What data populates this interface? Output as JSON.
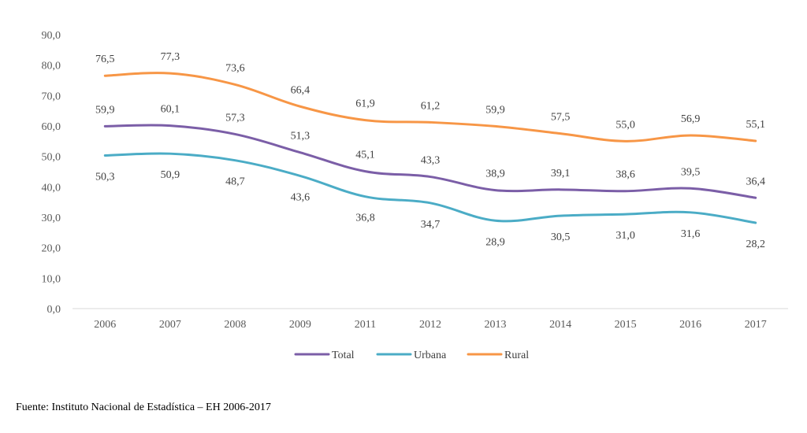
{
  "chart_data": {
    "type": "line",
    "categories": [
      "2006",
      "2007",
      "2008",
      "2009",
      "2011",
      "2012",
      "2013",
      "2014",
      "2015",
      "2016",
      "2017"
    ],
    "ylim": [
      0,
      90
    ],
    "yticks": [
      "0,0",
      "10,0",
      "20,0",
      "30,0",
      "40,0",
      "50,0",
      "60,0",
      "70,0",
      "80,0",
      "90,0"
    ],
    "grid": false,
    "legend_position": "bottom",
    "series": [
      {
        "name": "Total",
        "color": "#7b5ea7",
        "values": [
          59.9,
          60.1,
          57.3,
          51.3,
          45.1,
          43.3,
          38.9,
          39.1,
          38.6,
          39.5,
          36.4
        ],
        "labels": [
          "59,9",
          "60,1",
          "57,3",
          "51,3",
          "45,1",
          "43,3",
          "38,9",
          "39,1",
          "38,6",
          "39,5",
          "36,4"
        ],
        "label_position": "above"
      },
      {
        "name": "Urbana",
        "color": "#4bacc6",
        "values": [
          50.3,
          50.9,
          48.7,
          43.6,
          36.8,
          34.7,
          28.9,
          30.5,
          31.0,
          31.6,
          28.2
        ],
        "labels": [
          "50,3",
          "50,9",
          "48,7",
          "43,6",
          "36,8",
          "34,7",
          "28,9",
          "30,5",
          "31,0",
          "31,6",
          "28,2"
        ],
        "label_position": "below"
      },
      {
        "name": "Rural",
        "color": "#f79646",
        "values": [
          76.5,
          77.3,
          73.6,
          66.4,
          61.9,
          61.2,
          59.9,
          57.5,
          55.0,
          56.9,
          55.1
        ],
        "labels": [
          "76,5",
          "77,3",
          "73,6",
          "66,4",
          "61,9",
          "61,2",
          "59,9",
          "57,5",
          "55,0",
          "56,9",
          "55,1"
        ],
        "label_position": "above"
      }
    ]
  },
  "source": "Fuente: Instituto Nacional de Estadística – EH 2006-2017"
}
